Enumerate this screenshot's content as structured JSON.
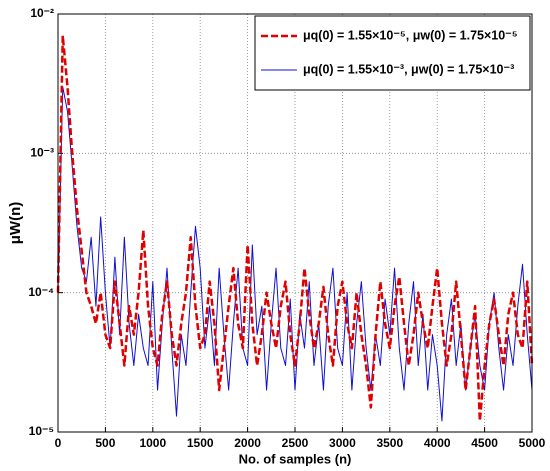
{
  "chart_data": {
    "type": "line",
    "xlabel": "No. of samples (n)",
    "ylabel": "μW(n)",
    "log_y": true,
    "grid": true,
    "legend": "upper right",
    "x": [
      0,
      50,
      100,
      150,
      200,
      250,
      300,
      350,
      400,
      450,
      500,
      550,
      600,
      650,
      700,
      750,
      800,
      850,
      900,
      950,
      1000,
      1050,
      1100,
      1150,
      1200,
      1250,
      1300,
      1350,
      1400,
      1450,
      1500,
      1550,
      1600,
      1650,
      1700,
      1750,
      1800,
      1850,
      1900,
      1950,
      2000,
      2050,
      2100,
      2150,
      2200,
      2250,
      2300,
      2350,
      2400,
      2450,
      2500,
      2550,
      2600,
      2650,
      2700,
      2750,
      2800,
      2850,
      2900,
      2950,
      3000,
      3050,
      3100,
      3150,
      3200,
      3250,
      3300,
      3350,
      3400,
      3450,
      3500,
      3550,
      3600,
      3650,
      3700,
      3750,
      3800,
      3850,
      3900,
      3950,
      4000,
      4050,
      4100,
      4150,
      4200,
      4250,
      4300,
      4350,
      4400,
      4450,
      4500,
      4550,
      4600,
      4650,
      4700,
      4750,
      4800,
      4850,
      4900,
      4950,
      5000
    ],
    "series": [
      {
        "name": "μq(0) = 1.55×10⁻⁵, μw(0) = 1.75×10⁻⁵",
        "color": "#e00000",
        "dash": true,
        "values": [
          0.0001,
          0.007,
          0.003,
          0.001,
          0.0004,
          0.0002,
          0.0001,
          8e-05,
          6e-05,
          0.0001,
          5e-05,
          4e-05,
          0.00012,
          6e-05,
          3e-05,
          8e-05,
          5e-05,
          0.0001,
          0.00028,
          8e-05,
          4e-05,
          3e-05,
          7e-05,
          0.00012,
          5e-05,
          3e-05,
          6e-05,
          0.0001,
          0.00025,
          8e-05,
          4e-05,
          5e-05,
          0.00012,
          6e-05,
          2e-05,
          4e-05,
          8e-05,
          0.00015,
          6e-05,
          4e-05,
          0.00022,
          6e-05,
          3e-05,
          5e-05,
          0.0001,
          6e-05,
          4e-05,
          8e-05,
          0.00012,
          5e-05,
          3e-05,
          6e-05,
          0.00015,
          7e-05,
          4e-05,
          6e-05,
          0.00011,
          5e-05,
          3e-05,
          8e-05,
          0.00012,
          6e-05,
          4e-05,
          0.0001,
          5e-05,
          3e-05,
          1.5e-05,
          5e-05,
          0.00012,
          6e-05,
          4e-05,
          8e-05,
          0.00013,
          6e-05,
          3e-05,
          5e-05,
          0.0001,
          6e-05,
          4e-05,
          8e-05,
          0.00015,
          6e-05,
          3e-05,
          5e-05,
          0.00012,
          5e-05,
          2e-05,
          4e-05,
          8e-05,
          1.2e-05,
          3e-05,
          6e-05,
          9e-05,
          5e-05,
          3e-05,
          7e-05,
          0.0001,
          5e-05,
          4e-05,
          0.00012,
          3e-05
        ]
      },
      {
        "name": "μq(0) = 1.55×10⁻³, μw(0) = 1.75×10⁻³",
        "color": "#1010d0",
        "dash": false,
        "values": [
          0.0001,
          0.003,
          0.002,
          0.0008,
          0.0003,
          0.00015,
          0.00012,
          0.00025,
          8e-05,
          0.00035,
          0.0001,
          4e-05,
          0.00018,
          5e-05,
          0.00025,
          6e-05,
          3e-05,
          7e-05,
          4e-05,
          3e-05,
          0.00012,
          2e-05,
          6e-05,
          0.00015,
          4e-05,
          1.3e-05,
          5e-05,
          3e-05,
          0.0001,
          0.0003,
          0.00015,
          4e-05,
          8e-05,
          3e-05,
          0.00015,
          5e-05,
          2e-05,
          6e-05,
          0.00015,
          4e-05,
          3e-05,
          0.00022,
          5e-05,
          8e-05,
          2e-05,
          6e-05,
          0.00015,
          4e-05,
          3e-05,
          9e-05,
          2e-05,
          7e-05,
          4e-05,
          0.00012,
          3e-05,
          6e-05,
          2e-05,
          8e-05,
          0.00015,
          4e-05,
          3e-05,
          0.0001,
          2e-05,
          6e-05,
          0.00012,
          4e-05,
          2e-05,
          5e-05,
          3e-05,
          9e-05,
          5e-05,
          0.00015,
          4e-05,
          2e-05,
          6e-05,
          0.00012,
          3e-05,
          7e-05,
          2e-05,
          5e-05,
          3e-05,
          1.2e-05,
          5e-05,
          9e-05,
          3e-05,
          6e-05,
          2e-05,
          4e-05,
          7e-05,
          3e-05,
          2e-05,
          6e-05,
          0.0001,
          4e-05,
          2e-05,
          5e-05,
          3e-05,
          8e-05,
          0.00016,
          5e-05,
          2e-05
        ]
      }
    ],
    "xlim": [
      0,
      5000
    ],
    "xticks": [
      0,
      500,
      1000,
      1500,
      2000,
      2500,
      3000,
      3500,
      4000,
      4500,
      5000
    ],
    "ylim": [
      1e-05,
      0.01
    ],
    "yticks": [
      {
        "value": 1e-05,
        "label": "10⁻⁵"
      },
      {
        "value": 0.0001,
        "label": "10⁻⁴"
      },
      {
        "value": 0.001,
        "label": "10⁻³"
      },
      {
        "value": 0.01,
        "label": "10⁻²"
      }
    ]
  }
}
